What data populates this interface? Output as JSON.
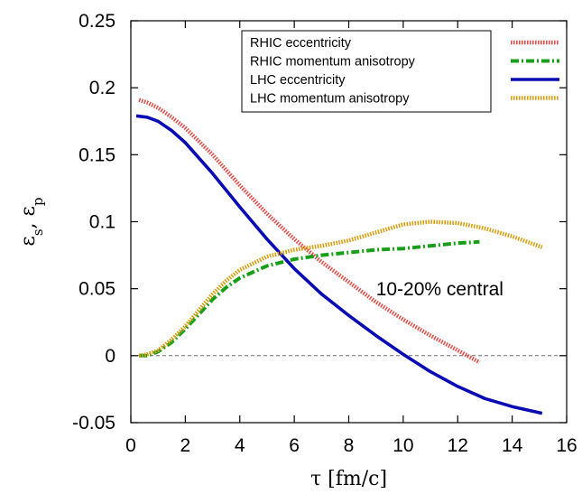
{
  "chart_data": {
    "type": "line",
    "xlabel": "τ [fm/c]",
    "ylabel": "εs, εp",
    "ylabel_parts": {
      "a": "ε",
      "a_sub": "s",
      "sep": ", ",
      "b": "ε",
      "b_sub": "p"
    },
    "xlim": [
      0,
      16
    ],
    "ylim": [
      -0.05,
      0.25
    ],
    "xticks": [
      "0",
      "2",
      "4",
      "6",
      "8",
      "10",
      "12",
      "14",
      "16"
    ],
    "yticks": [
      "-0.05",
      "0",
      "0.05",
      "0.1",
      "0.15",
      "0.2",
      "0.25"
    ],
    "annotation": "10-20% central",
    "zero_line": true,
    "legend_position": "top-right",
    "series": [
      {
        "name": "RHIC eccentricity",
        "color": "#d9534f",
        "style": "dotted-thick",
        "x": [
          0.3,
          0.6,
          1.0,
          1.5,
          2,
          3,
          4,
          5,
          6,
          7,
          8,
          9,
          10,
          11,
          12,
          12.8
        ],
        "y": [
          0.191,
          0.189,
          0.185,
          0.178,
          0.17,
          0.15,
          0.127,
          0.106,
          0.087,
          0.07,
          0.055,
          0.04,
          0.027,
          0.015,
          0.004,
          -0.005
        ]
      },
      {
        "name": "RHIC momentum anisotropy",
        "color": "#1a9e1a",
        "style": "dash-dot",
        "x": [
          0.3,
          0.6,
          1,
          1.5,
          2,
          2.5,
          3,
          3.5,
          4,
          5,
          6,
          7,
          8,
          9,
          10,
          11,
          12,
          12.8
        ],
        "y": [
          0.0,
          0.0,
          0.003,
          0.01,
          0.02,
          0.031,
          0.042,
          0.051,
          0.058,
          0.067,
          0.072,
          0.075,
          0.077,
          0.079,
          0.08,
          0.082,
          0.084,
          0.085
        ]
      },
      {
        "name": "LHC eccentricity",
        "color": "#0b0bb3",
        "style": "solid",
        "x": [
          0.2,
          0.6,
          1,
          1.5,
          2,
          3,
          4,
          5,
          6,
          7,
          8,
          9,
          10,
          11,
          12,
          13,
          14,
          15.1
        ],
        "y": [
          0.179,
          0.178,
          0.175,
          0.168,
          0.159,
          0.136,
          0.111,
          0.087,
          0.065,
          0.046,
          0.03,
          0.015,
          0.001,
          -0.012,
          -0.023,
          -0.032,
          -0.038,
          -0.043
        ]
      },
      {
        "name": "LHC momentum anisotropy",
        "color": "#d4a017",
        "style": "dotted-thick",
        "x": [
          0.3,
          0.6,
          1,
          1.5,
          2,
          2.5,
          3,
          3.5,
          4,
          5,
          6,
          7,
          8,
          9,
          10,
          11,
          12,
          13,
          14,
          15.1
        ],
        "y": [
          0.0,
          0.001,
          0.004,
          0.012,
          0.022,
          0.034,
          0.046,
          0.056,
          0.064,
          0.074,
          0.079,
          0.082,
          0.086,
          0.092,
          0.098,
          0.1,
          0.099,
          0.095,
          0.089,
          0.081
        ]
      }
    ]
  }
}
